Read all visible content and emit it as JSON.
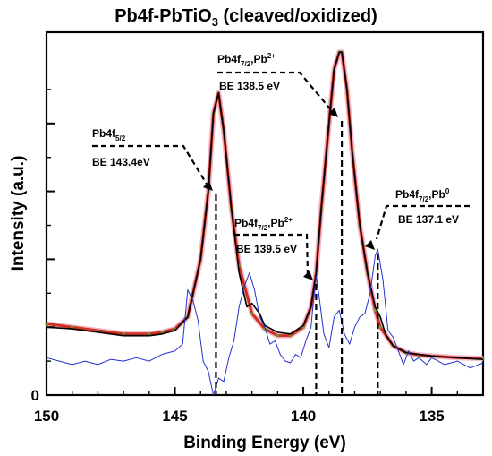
{
  "chart_data": {
    "type": "line",
    "title": "Pb4f-PbTiO",
    "title_sub": "3",
    "title_tail": " (cleaved/oxidized)",
    "xlabel": "Binding Energy (eV)",
    "ylabel": "Intensity (a.u.)",
    "xlim": [
      150,
      133
    ],
    "ylim": [
      0,
      10
    ],
    "x_reversed": true,
    "grid": false,
    "x_ticks": [
      {
        "value": 150,
        "label": "150"
      },
      {
        "value": 145,
        "label": "145"
      },
      {
        "value": 140,
        "label": "140"
      },
      {
        "value": 135,
        "label": "135"
      }
    ],
    "y_zero_label": "0",
    "y_minor_ticks": [
      1,
      2,
      3,
      4,
      5,
      6,
      7,
      8,
      9
    ],
    "series": [
      {
        "color": "#d03020",
        "style": "dots",
        "x": [
          150,
          149,
          148,
          147,
          146,
          145.5,
          145,
          144.5,
          144,
          143.7,
          143.5,
          143.3,
          143.1,
          142.8,
          142.5,
          142,
          141.5,
          141,
          140.5,
          140,
          139.7,
          139.5,
          139.3,
          139,
          138.8,
          138.6,
          138.5,
          138.3,
          138.1,
          137.8,
          137.5,
          137.2,
          137,
          136.5,
          136,
          135.5,
          135,
          134,
          133
        ],
        "y": [
          2.1,
          2.0,
          1.9,
          1.8,
          1.8,
          1.85,
          1.95,
          2.3,
          4.0,
          6.0,
          8.3,
          8.9,
          7.8,
          5.5,
          3.8,
          2.4,
          1.95,
          1.75,
          1.75,
          2.0,
          2.6,
          3.6,
          5.5,
          8.0,
          9.6,
          10.1,
          10.1,
          9.0,
          7.2,
          5.0,
          3.6,
          2.5,
          2.0,
          1.45,
          1.25,
          1.18,
          1.15,
          1.1,
          1.08
        ]
      },
      {
        "color": "#000000",
        "style": "line",
        "x": [
          150,
          149,
          148,
          147,
          146,
          145.5,
          145,
          144.5,
          144,
          143.7,
          143.5,
          143.3,
          143.1,
          142.8,
          142.5,
          142.2,
          142,
          141.7,
          141.5,
          141,
          140.5,
          140,
          139.7,
          139.5,
          139.3,
          139,
          138.8,
          138.6,
          138.5,
          138.3,
          138.1,
          137.8,
          137.5,
          137.2,
          137,
          136.8,
          136.5,
          136,
          135.5,
          135,
          134,
          133
        ],
        "y": [
          2.0,
          1.95,
          1.85,
          1.75,
          1.75,
          1.8,
          1.9,
          2.3,
          4.0,
          6.0,
          8.3,
          8.9,
          7.8,
          5.5,
          3.6,
          2.6,
          2.7,
          2.4,
          2.05,
          1.85,
          1.8,
          2.05,
          2.6,
          3.6,
          5.5,
          8.0,
          9.6,
          10.1,
          10.1,
          9.0,
          7.2,
          5.0,
          3.6,
          2.6,
          2.3,
          1.8,
          1.45,
          1.25,
          1.2,
          1.15,
          1.1,
          1.05
        ]
      },
      {
        "color": "#2233cc",
        "style": "noisy-line",
        "x": [
          150,
          149.5,
          149,
          148.5,
          148,
          147.5,
          147,
          146.5,
          146,
          145.5,
          145,
          144.7,
          144.5,
          144.3,
          144.1,
          143.9,
          143.7,
          143.5,
          143.3,
          143.1,
          142.9,
          142.7,
          142.5,
          142.3,
          142.1,
          141.9,
          141.7,
          141.5,
          141.3,
          141.1,
          140.9,
          140.7,
          140.5,
          140.3,
          140.1,
          139.9,
          139.7,
          139.6,
          139.5,
          139.4,
          139.2,
          139,
          138.8,
          138.6,
          138.4,
          138.2,
          138,
          137.8,
          137.6,
          137.4,
          137.2,
          137.1,
          136.9,
          136.7,
          136.5,
          136.3,
          136.1,
          135.9,
          135.7,
          135.5,
          135.2,
          135,
          134.5,
          134,
          133.5,
          133
        ],
        "y": [
          1.1,
          1.0,
          0.9,
          1.0,
          0.9,
          1.05,
          1.0,
          1.1,
          1.0,
          1.2,
          1.3,
          1.5,
          3.1,
          2.8,
          2.2,
          1.0,
          0.7,
          0.0,
          0.5,
          0.4,
          1.1,
          1.6,
          2.6,
          3.2,
          3.6,
          3.1,
          2.3,
          2.0,
          1.5,
          1.6,
          1.2,
          1.0,
          0.95,
          1.2,
          1.1,
          1.6,
          2.0,
          2.8,
          3.5,
          3.0,
          1.8,
          1.4,
          2.3,
          2.5,
          1.8,
          1.5,
          2.0,
          2.3,
          2.4,
          3.0,
          4.1,
          4.3,
          3.4,
          1.9,
          1.7,
          1.3,
          0.9,
          1.3,
          1.0,
          1.1,
          0.9,
          1.1,
          0.9,
          1.0,
          0.8,
          0.95
        ]
      }
    ],
    "annotations": [
      {
        "main": "Pb4f",
        "sub": "5/2",
        "sup": "",
        "be": "BE 143.4eV",
        "peak_be": 143.4,
        "dash_be": 143.4
      },
      {
        "main": "Pb4f",
        "sub": "7/2",
        "sup": "2+",
        "be": "BE 138.5 eV",
        "peak_be": 138.5,
        "dash_be": 138.5
      },
      {
        "main": "Pb4f",
        "sub": "7/2",
        "sup": "2+",
        "be": "BE 139.5 eV",
        "peak_be": 139.5,
        "dash_be": 139.5
      },
      {
        "main": "Pb4f",
        "sub": "7/2",
        "sup": "0",
        "be": "BE 137.1 eV",
        "peak_be": 137.1,
        "dash_be": 137.1
      }
    ],
    "annotation_sep": ",Pb"
  }
}
